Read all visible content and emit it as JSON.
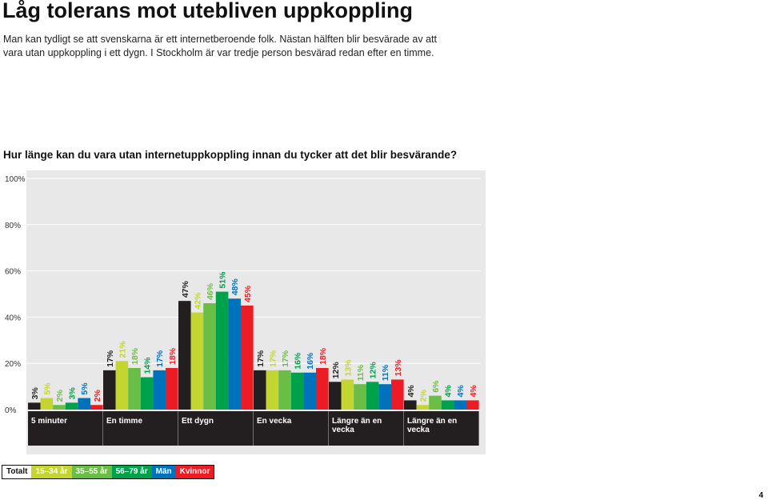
{
  "header": {
    "title": "Låg tolerans mot utebliven uppkoppling",
    "intro": "Man kan tydligt se att svenskarna är ett internetberoende folk. Nästan hälften blir besvärade av att vara utan uppkoppling i ett dygn. I Stockholm är var tredje person besvärad redan efter en timme."
  },
  "page_number": "4",
  "chart_data": {
    "type": "bar",
    "title": "Hur länge kan du vara utan internetuppkoppling innan du tycker att det blir besvärande?",
    "categories": [
      "5 minuter",
      "En timme",
      "Ett dygn",
      "En vecka",
      "Längre än en vecka",
      "Längre än en vecka"
    ],
    "ylim": [
      0,
      100
    ],
    "yticks": [
      0,
      20,
      40,
      60,
      80,
      100
    ],
    "ytick_labels": [
      "0%",
      "20%",
      "40%",
      "60%",
      "80%",
      "100%"
    ],
    "value_suffix": "%",
    "grid": true,
    "legend_position": "bottom-left",
    "series": [
      {
        "name": "Totalt",
        "color": "#231f20",
        "values": [
          3,
          17,
          47,
          17,
          12,
          4
        ]
      },
      {
        "name": "15–34 år",
        "color": "#c3d52e",
        "values": [
          5,
          21,
          42,
          17,
          13,
          2
        ]
      },
      {
        "name": "35–55 år",
        "color": "#6abd45",
        "values": [
          2,
          18,
          46,
          17,
          11,
          6
        ]
      },
      {
        "name": "56–79 år",
        "color": "#00a14b",
        "values": [
          3,
          14,
          51,
          16,
          12,
          4
        ]
      },
      {
        "name": "Män",
        "color": "#0072bc",
        "values": [
          5,
          17,
          48,
          16,
          11,
          4
        ]
      },
      {
        "name": "Kvinnor",
        "color": "#ed1c24",
        "values": [
          2,
          18,
          45,
          18,
          13,
          4
        ]
      }
    ]
  }
}
